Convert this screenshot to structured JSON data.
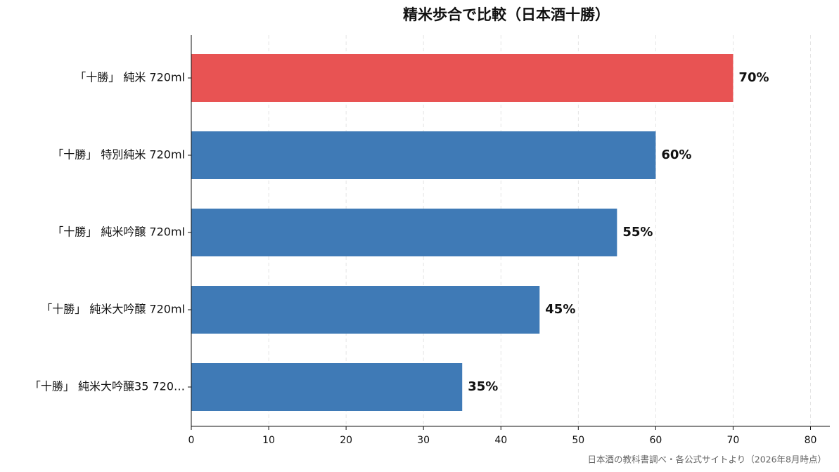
{
  "chart_data": {
    "type": "barh",
    "title": "精米歩合で比較（日本酒十勝）",
    "categories": [
      "「十勝」 純米 720ml",
      "「十勝」 特別純米 720ml",
      "「十勝」 純米吟醸 720ml",
      "「十勝」 純米大吟醸 720ml",
      "「十勝」 純米大吟醸35 720…"
    ],
    "values": [
      70,
      60,
      55,
      45,
      35
    ],
    "value_labels": [
      "70%",
      "60%",
      "55%",
      "45%",
      "35%"
    ],
    "colors": [
      "#e85353",
      "#3f7ab6",
      "#3f7ab6",
      "#3f7ab6",
      "#3f7ab6"
    ],
    "xlim": [
      0,
      82.5
    ],
    "xticks": [
      0,
      10,
      20,
      30,
      40,
      50,
      60,
      70,
      80
    ],
    "grid": true,
    "source": "日本酒の教科書調べ・各公式サイトより（2026年8月時点）"
  }
}
